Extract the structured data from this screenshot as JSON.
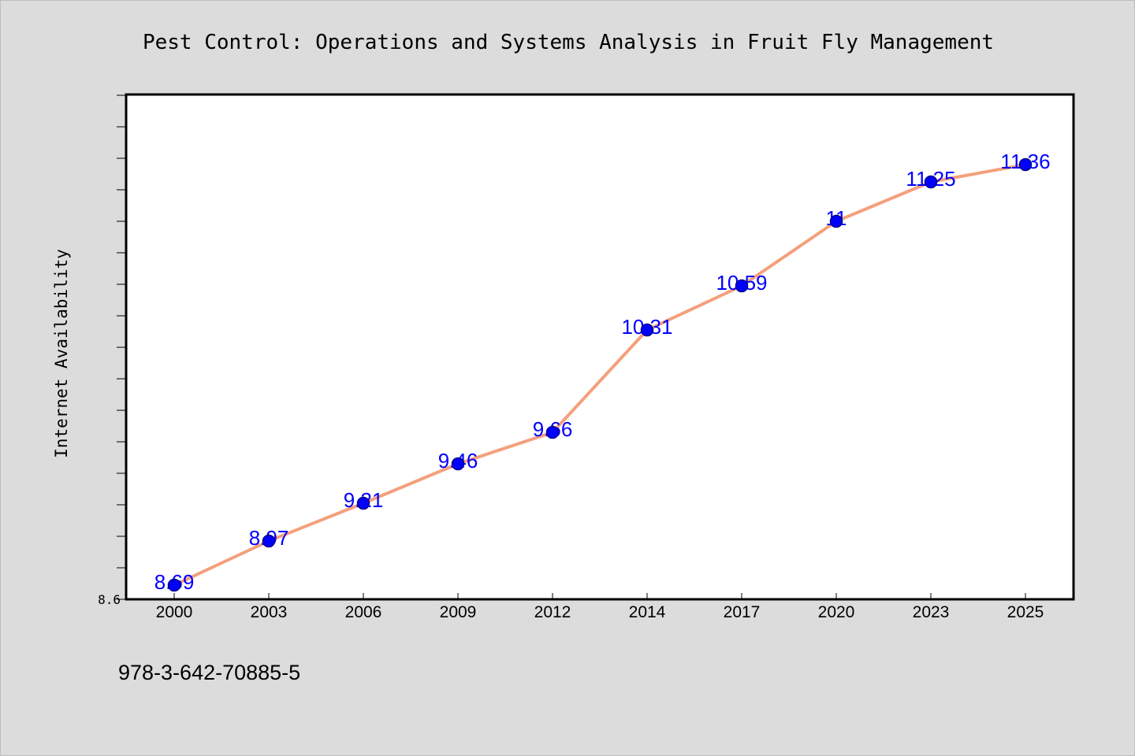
{
  "chart_data": {
    "type": "line",
    "title": "Pest Control: Operations and Systems Analysis in Fruit Fly Management",
    "xlabel": "",
    "ylabel": "Internet Availability",
    "categories": [
      "2000",
      "2003",
      "2006",
      "2009",
      "2012",
      "2014",
      "2017",
      "2020",
      "2023",
      "2025"
    ],
    "series": [
      {
        "values": [
          8.69,
          8.97,
          9.21,
          9.46,
          9.66,
          10.31,
          10.59,
          11,
          11.25,
          11.36
        ]
      }
    ],
    "data_labels": [
      "8.69",
      "8.97",
      "9.21",
      "9.46",
      "9.66",
      "10.31",
      "10.59",
      "11",
      "11.25",
      "11.36"
    ],
    "ylim": [
      8.6,
      11.8
    ],
    "yticks_labeled": [
      "8.6"
    ],
    "ytick_step": 0.2,
    "grid": false,
    "legend": "none",
    "colors": {
      "line": "#f4a07c",
      "marker_fill": "#0000ff",
      "marker_edge": "#00008b",
      "data_label": "#0000ff",
      "plot_background": "#ffffff",
      "figure_background": "#dcdcdc"
    }
  },
  "footnote": "978-3-642-70885-5"
}
